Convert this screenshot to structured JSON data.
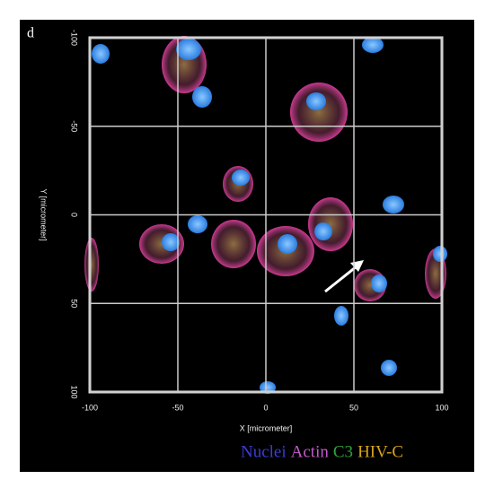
{
  "panel_label": "d",
  "x_axis": {
    "label": "X [micrometer]",
    "lim": [
      -100,
      100
    ],
    "ticks": [
      -100,
      -50,
      0,
      50,
      100
    ]
  },
  "y_axis": {
    "label": "Y [micrometer]",
    "lim": [
      -100,
      100
    ],
    "ticks": [
      -100,
      -50,
      0,
      50,
      100
    ]
  },
  "legend": [
    {
      "label": "Nuclei",
      "color": "#3c3cd8"
    },
    {
      "label": "Actin",
      "color": "#c05cc8"
    },
    {
      "label": "C3",
      "color": "#2fa33a"
    },
    {
      "label": "HIV-C",
      "color": "#d6a21c"
    }
  ]
}
